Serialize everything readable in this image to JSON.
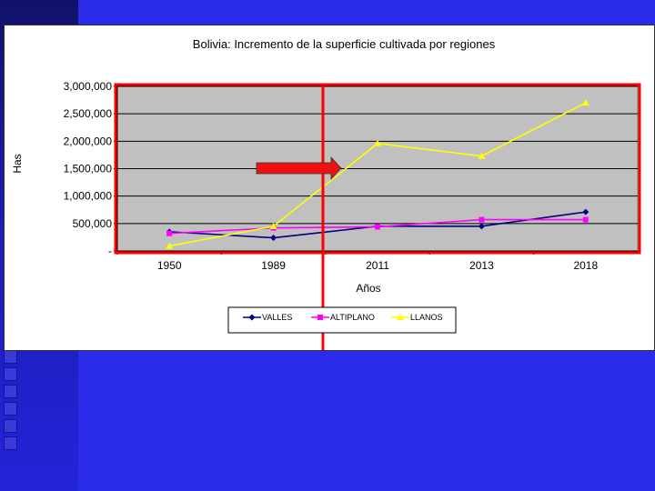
{
  "colors": {
    "background": "#2b2bea",
    "plot_area": "#c0c0c0",
    "highlight_border": "#ff0000",
    "arrow": "#ee1111"
  },
  "annotation": {
    "arrow_icon": "red-right-arrow-icon"
  },
  "chart_data": {
    "type": "line",
    "title": "Bolivia: Incremento de la superficie cultivada por regiones",
    "xlabel": "Años",
    "ylabel": "Has",
    "categories": [
      "1950",
      "1989",
      "2011",
      "2013",
      "2018"
    ],
    "ylim": [
      0,
      3000000
    ],
    "yticks": [
      0,
      500000,
      1000000,
      1500000,
      2000000,
      2500000,
      3000000
    ],
    "ytick_labels": [
      "-",
      "500,000",
      "1,000,000",
      "1,500,000",
      "2,000,000",
      "2,500,000",
      "3,000,000"
    ],
    "grid": true,
    "legend_position": "bottom",
    "series": [
      {
        "name": "VALLES",
        "color": "#000080",
        "marker": "diamond",
        "values": [
          350000,
          240000,
          450000,
          450000,
          710000
        ]
      },
      {
        "name": "ALTIPLANO",
        "color": "#ff00ff",
        "marker": "square",
        "values": [
          320000,
          420000,
          440000,
          570000,
          570000
        ]
      },
      {
        "name": "LLANOS",
        "color": "#ffff00",
        "marker": "triangle",
        "values": [
          90000,
          450000,
          1960000,
          1730000,
          2700000
        ]
      }
    ]
  }
}
